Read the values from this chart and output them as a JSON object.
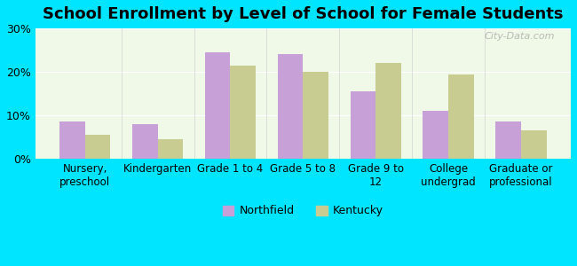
{
  "title": "School Enrollment by Level of School for Female Students",
  "categories": [
    "Nursery,\npreschool",
    "Kindergarten",
    "Grade 1 to 4",
    "Grade 5 to 8",
    "Grade 9 to\n12",
    "College\nundergrad",
    "Graduate or\nprofessional"
  ],
  "northfield": [
    8.5,
    8.0,
    24.5,
    24.0,
    15.5,
    11.0,
    8.5
  ],
  "kentucky": [
    5.5,
    4.5,
    21.5,
    20.0,
    22.0,
    19.5,
    6.5
  ],
  "northfield_color": "#c8a0d8",
  "kentucky_color": "#c8cc90",
  "background_outer": "#00e5ff",
  "background_inner_top": "#f0f8e8",
  "background_inner_bottom": "#e8f5e0",
  "ylim": [
    0,
    30
  ],
  "yticks": [
    0,
    10,
    20,
    30
  ],
  "ytick_labels": [
    "0%",
    "10%",
    "20%",
    "30%"
  ],
  "bar_width": 0.35,
  "legend_labels": [
    "Northfield",
    "Kentucky"
  ],
  "watermark": "City-Data.com"
}
